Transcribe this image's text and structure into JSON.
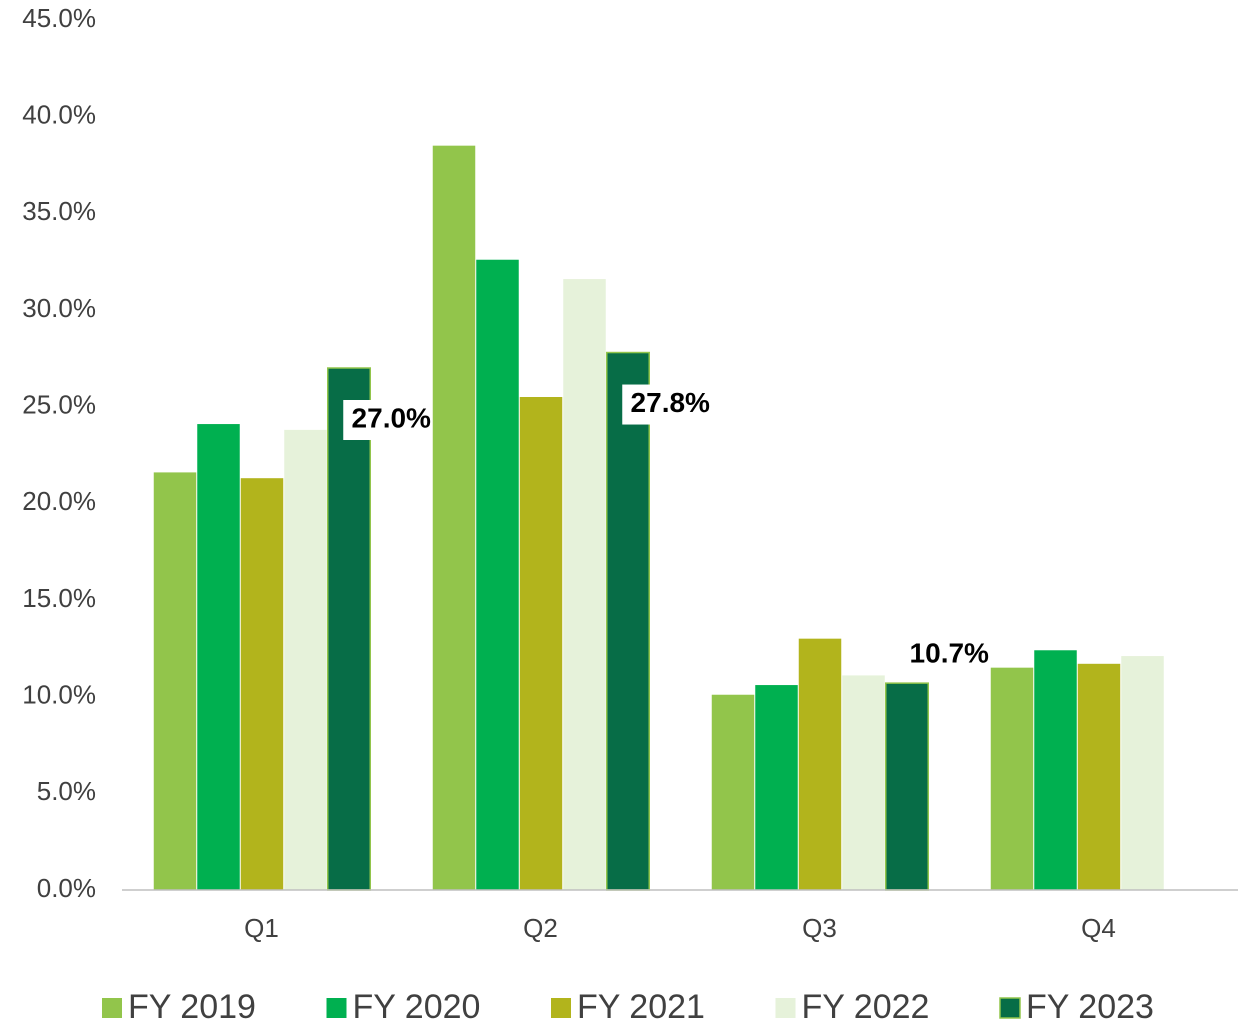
{
  "chart_data": {
    "type": "bar",
    "categories": [
      "Q1",
      "Q2",
      "Q3",
      "Q4"
    ],
    "series": [
      {
        "name": "FY 2019",
        "color": "#92c54b",
        "values": [
          21.6,
          38.5,
          10.1,
          11.5
        ]
      },
      {
        "name": "FY 2020",
        "color": "#00b050",
        "values": [
          24.1,
          32.6,
          10.6,
          12.4
        ]
      },
      {
        "name": "FY 2021",
        "color": "#b2b41c",
        "values": [
          21.3,
          25.5,
          13.0,
          11.7
        ]
      },
      {
        "name": "FY 2022",
        "color": "#e6f2da",
        "values": [
          23.8,
          31.6,
          11.1,
          12.1
        ]
      },
      {
        "name": "FY 2023",
        "color": "#076d47",
        "values": [
          27.0,
          27.8,
          10.7,
          null
        ],
        "value_labels": [
          "27.0%",
          "27.8%",
          "10.7%",
          null
        ]
      }
    ],
    "ylim": [
      0,
      45
    ],
    "yticks": [
      {
        "value": 0,
        "label": "0.0%"
      },
      {
        "value": 5,
        "label": "5.0%"
      },
      {
        "value": 10,
        "label": "10.0%"
      },
      {
        "value": 15,
        "label": "15.0%"
      },
      {
        "value": 20,
        "label": "20.0%"
      },
      {
        "value": 25,
        "label": "25.0%"
      },
      {
        "value": 30,
        "label": "30.0%"
      },
      {
        "value": 35,
        "label": "35.0%"
      },
      {
        "value": 40,
        "label": "40.0%"
      },
      {
        "value": 45,
        "label": "45.0%"
      }
    ],
    "grid": false,
    "legend": "bottom"
  }
}
